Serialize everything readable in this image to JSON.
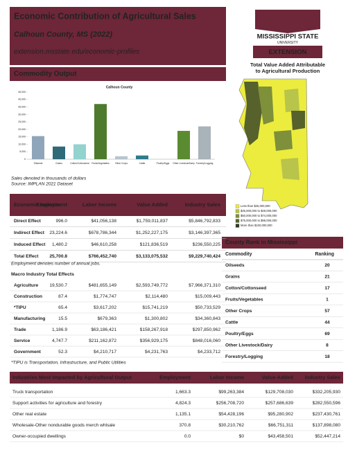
{
  "header": {
    "title": "Economic Contribution of Agricultural Sales",
    "subtitle": "Calhoun County, MS (2022)",
    "url": "extension.msstate.edu/economic-profiles"
  },
  "logo": {
    "name": "MISSISSIPPI STATE",
    "sub": "UNIVERSITY",
    "unit": "EXTENSION"
  },
  "commodity_output": {
    "heading": "Commodity Output",
    "notes": [
      "Sales denoted in thousands of dollars",
      "Source: IMPLAN 2021 Dataset"
    ]
  },
  "chart_data": {
    "type": "bar",
    "title": "Calhoun County",
    "categories": [
      "Oilseeds",
      "Grains",
      "Cotton/Cottonseed",
      "Fruits/Vegetables",
      "Other Crops",
      "Cattle",
      "Poultry/Eggs",
      "Other Livestock/Dairy",
      "Forestry/Logging"
    ],
    "values": [
      15500,
      8500,
      10000,
      37000,
      2000,
      2500,
      0,
      19000,
      22000
    ],
    "colors": [
      "#8fa6ba",
      "#2e6a78",
      "#92d2cf",
      "#4e7a2d",
      "#b9c4cc",
      "#2d7b8b",
      "#999999",
      "#5b8b31",
      "#a8b3ba"
    ],
    "ylim": [
      0,
      45000
    ],
    "yticks": [
      0,
      {
        "value": 5000,
        "label": "5,000"
      },
      {
        "value": 10000,
        "label": "10,000"
      },
      {
        "value": 15000,
        "label": "15,000"
      },
      {
        "value": 20000,
        "label": "20,000"
      },
      {
        "value": 25000,
        "label": "25,000"
      },
      {
        "value": 30000,
        "label": "30,000"
      },
      {
        "value": 35000,
        "label": "35,000"
      },
      {
        "value": 40000,
        "label": "40,000"
      },
      {
        "value": 45000,
        "label": "45,000"
      }
    ]
  },
  "map": {
    "title": [
      "Total Value Added Attributable",
      "to Agricultural Production"
    ],
    "legend": [
      "Less than $25,000,000",
      "$25,000,000 to $49,000,000",
      "$50,000,000 to $74,000,000",
      "$75,000,000 to $99,000,000",
      "More than $100,000,000"
    ],
    "colors": [
      "#ecec3e",
      "#b8c44a",
      "#7e903a",
      "#56612b",
      "#2f3a1e"
    ]
  },
  "impacts": {
    "headers": [
      "Economic Impacts",
      "Employment",
      "Labor Income",
      "Value Added",
      "Industry Sales"
    ],
    "rows": [
      [
        "Direct Effect",
        "996.0",
        "$41,056,138",
        "$1,759,011,837",
        "$5,846,792,833"
      ],
      [
        "Indirect Effect",
        "23,224.6",
        "$678,786,344",
        "$1,252,227,175",
        "$3,146,397,365"
      ],
      [
        "Induced Effect",
        "1,480.2",
        "$46,610,258",
        "$121,836,519",
        "$236,550,225"
      ],
      [
        "Total Effect",
        "25,700.8",
        "$766,452,740",
        "$3,133,075,532",
        "$9,229,740,424"
      ]
    ],
    "note": "Employment denotes number of annual jobs.",
    "macro_heading": "Macro Industry Total Effects",
    "macro_rows": [
      [
        "Agriculture",
        "19,530.7",
        "$481,655,149",
        "$2,593,749,772",
        "$7,966,371,310"
      ],
      [
        "Construction",
        "87.4",
        "$1,774,747",
        "$2,114,480",
        "$15,009,443"
      ],
      [
        "*TIPU",
        "65.4",
        "$3,617,202",
        "$15,741,219",
        "$50,733,529"
      ],
      [
        "Manufacturing",
        "15.5",
        "$679,363",
        "$1,300,802",
        "$34,360,843"
      ],
      [
        "Trade",
        "1,186.9",
        "$63,186,421",
        "$158,267,918",
        "$297,850,962"
      ],
      [
        "Service",
        "4,747.7",
        "$211,162,872",
        "$356,929,175",
        "$848,016,060"
      ],
      [
        "Government",
        "52.3",
        "$4,210,717",
        "$4,231,763",
        "$4,233,712"
      ]
    ],
    "macro_note": "*TIPU is Transportation, Infrastructure, and Public Utilities"
  },
  "rank": {
    "heading": "County Rank in Mississippi",
    "headers": [
      "Commodity",
      "Ranking"
    ],
    "rows": [
      [
        "Oilseeds",
        "20"
      ],
      [
        "Grains",
        "21"
      ],
      [
        "Cotton/Cottonseed",
        "17"
      ],
      [
        "Fruits/Vegetables",
        "1"
      ],
      [
        "Other Crops",
        "57"
      ],
      [
        "Cattle",
        "44"
      ],
      [
        "Poultry/Eggs",
        "69"
      ],
      [
        "Other Livestock/Dairy",
        "8"
      ],
      [
        "Forestry/Logging",
        "18"
      ]
    ]
  },
  "industries": {
    "headers": [
      "Industries Most Impacted by Agricultural Output",
      "Employment",
      "Labor Income",
      "Value-Added",
      "Industry Sales"
    ],
    "rows": [
      [
        "Truck transportation",
        "1,663.3",
        "$99,263,384",
        "$129,708,030",
        "$332,205,930"
      ],
      [
        "Support activities for agriculture and forestry",
        "4,824.3",
        "$256,708,720",
        "$257,686,639",
        "$282,550,596"
      ],
      [
        "Other real estate",
        "1,135.1",
        "$54,428,196",
        "$95,280,902",
        "$237,430,761"
      ],
      [
        "Wholesale-Other nondurable goods merch whlsale",
        "370.8",
        "$30,210,762",
        "$66,751,311",
        "$137,898,080"
      ],
      [
        "Owner-occupied dwellings",
        "0.0",
        "$0",
        "$43,458,501",
        "$52,447,214"
      ]
    ]
  }
}
